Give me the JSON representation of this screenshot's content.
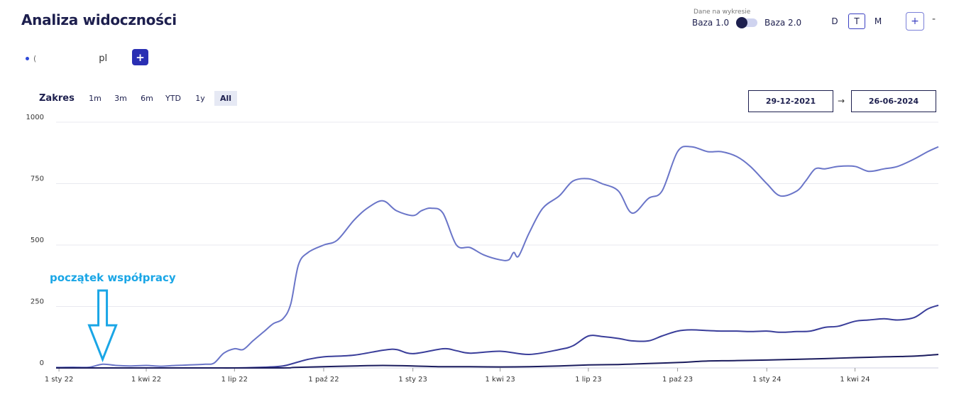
{
  "title": "Analiza widoczności",
  "domain": {
    "prefix": "(",
    "tld": "pl",
    "add_label": "+"
  },
  "source": {
    "label": "Dane na wykresie",
    "option1": "Baza 1.0",
    "option2": "Baza 2.0"
  },
  "periods": {
    "d": "D",
    "t": "T",
    "m": "M",
    "selected": "T"
  },
  "zoom": {
    "plus": "+",
    "minus": "-"
  },
  "range": {
    "label": "Zakres",
    "buttons": [
      "1m",
      "3m",
      "6m",
      "YTD",
      "1y",
      "All"
    ],
    "active": "All",
    "date_from": "29-12-2021",
    "arrow": "→",
    "date_to": "26-06-2024"
  },
  "colors": {
    "top50": "#6a75c8",
    "top10": "#3a3e9a",
    "top3": "#1b1c5e",
    "accent": "#2a2fb3",
    "annotation": "#1aa6e6"
  },
  "annotation": {
    "text": "początek współpracy",
    "date": "2022-02-15"
  },
  "chart_data": {
    "type": "line",
    "ylim": [
      0,
      1000
    ],
    "y_ticks": [
      0,
      250,
      500,
      750,
      1000
    ],
    "y_tick_labels": [
      "0",
      "250",
      "500",
      "750",
      "1000"
    ],
    "x_ticks": [
      "2022-01-01",
      "2022-04-01",
      "2022-07-01",
      "2022-10-01",
      "2023-01-01",
      "2023-04-01",
      "2023-07-01",
      "2023-10-01",
      "2024-01-01",
      "2024-04-01"
    ],
    "x_tick_labels": [
      "1 sty 22",
      "1 kwi 22",
      "1 lip 22",
      "1 paź 22",
      "1 sty 23",
      "1 kwi 23",
      "1 lip 23",
      "1 paź 23",
      "1 sty 24",
      "1 kwi 24"
    ],
    "x_range": [
      "2021-12-29",
      "2024-06-26"
    ],
    "grid": true,
    "series": [
      {
        "key": "top50",
        "dates": [
          "2021-12-29",
          "2022-01-15",
          "2022-02-01",
          "2022-02-15",
          "2022-03-01",
          "2022-03-15",
          "2022-04-01",
          "2022-04-15",
          "2022-05-01",
          "2022-05-15",
          "2022-06-01",
          "2022-06-10",
          "2022-06-20",
          "2022-07-01",
          "2022-07-10",
          "2022-07-20",
          "2022-08-01",
          "2022-08-10",
          "2022-08-20",
          "2022-08-28",
          "2022-09-05",
          "2022-09-15",
          "2022-10-01",
          "2022-10-15",
          "2022-11-01",
          "2022-11-15",
          "2022-12-01",
          "2022-12-15",
          "2023-01-01",
          "2023-01-10",
          "2023-01-20",
          "2023-02-01",
          "2023-02-15",
          "2023-03-01",
          "2023-03-15",
          "2023-04-01",
          "2023-04-10",
          "2023-04-15",
          "2023-04-20",
          "2023-05-01",
          "2023-05-15",
          "2023-06-01",
          "2023-06-15",
          "2023-07-01",
          "2023-07-15",
          "2023-08-01",
          "2023-08-15",
          "2023-09-01",
          "2023-09-15",
          "2023-10-01",
          "2023-10-15",
          "2023-11-01",
          "2023-11-15",
          "2023-12-01",
          "2023-12-15",
          "2024-01-01",
          "2024-01-15",
          "2024-02-01",
          "2024-02-10",
          "2024-02-20",
          "2024-03-01",
          "2024-03-15",
          "2024-04-01",
          "2024-04-15",
          "2024-05-01",
          "2024-05-15",
          "2024-06-01",
          "2024-06-15",
          "2024-06-26"
        ],
        "values": [
          2,
          3,
          3,
          15,
          10,
          8,
          10,
          7,
          10,
          12,
          15,
          20,
          60,
          78,
          75,
          110,
          150,
          180,
          200,
          260,
          420,
          470,
          500,
          520,
          600,
          650,
          680,
          640,
          620,
          640,
          650,
          630,
          500,
          490,
          460,
          440,
          440,
          470,
          455,
          550,
          650,
          700,
          760,
          770,
          750,
          720,
          630,
          690,
          720,
          880,
          900,
          880,
          880,
          860,
          820,
          750,
          700,
          720,
          760,
          810,
          810,
          820,
          820,
          800,
          810,
          820,
          850,
          880,
          900
        ]
      },
      {
        "key": "top10",
        "dates": [
          "2021-12-29",
          "2022-03-01",
          "2022-06-01",
          "2022-07-01",
          "2022-08-01",
          "2022-08-20",
          "2022-09-01",
          "2022-09-15",
          "2022-10-01",
          "2022-11-01",
          "2022-12-01",
          "2022-12-15",
          "2023-01-01",
          "2023-02-01",
          "2023-02-15",
          "2023-03-01",
          "2023-04-01",
          "2023-05-01",
          "2023-06-01",
          "2023-06-15",
          "2023-07-01",
          "2023-07-15",
          "2023-08-01",
          "2023-08-15",
          "2023-09-01",
          "2023-09-15",
          "2023-10-01",
          "2023-10-15",
          "2023-11-01",
          "2023-11-15",
          "2023-12-01",
          "2023-12-15",
          "2024-01-01",
          "2024-01-15",
          "2024-02-01",
          "2024-02-15",
          "2024-03-01",
          "2024-03-15",
          "2024-04-01",
          "2024-04-15",
          "2024-05-01",
          "2024-05-15",
          "2024-06-01",
          "2024-06-15",
          "2024-06-26"
        ],
        "values": [
          0,
          0,
          0,
          0,
          3,
          8,
          20,
          35,
          45,
          52,
          72,
          75,
          58,
          78,
          70,
          60,
          68,
          55,
          75,
          90,
          130,
          128,
          120,
          110,
          110,
          130,
          150,
          155,
          152,
          150,
          150,
          148,
          150,
          145,
          148,
          150,
          165,
          170,
          190,
          195,
          200,
          195,
          205,
          240,
          255
        ]
      },
      {
        "key": "top3",
        "dates": [
          "2021-12-29",
          "2022-08-01",
          "2022-09-01",
          "2022-10-01",
          "2022-11-01",
          "2022-12-01",
          "2023-01-01",
          "2023-02-01",
          "2023-03-01",
          "2023-04-01",
          "2023-05-01",
          "2023-06-01",
          "2023-07-01",
          "2023-08-01",
          "2023-09-01",
          "2023-10-01",
          "2023-11-01",
          "2023-12-01",
          "2024-01-01",
          "2024-02-01",
          "2024-03-01",
          "2024-04-01",
          "2024-05-01",
          "2024-06-01",
          "2024-06-26"
        ],
        "values": [
          0,
          0,
          2,
          5,
          8,
          10,
          8,
          5,
          5,
          4,
          5,
          8,
          12,
          14,
          18,
          22,
          28,
          30,
          32,
          35,
          38,
          42,
          45,
          48,
          55
        ]
      }
    ]
  }
}
